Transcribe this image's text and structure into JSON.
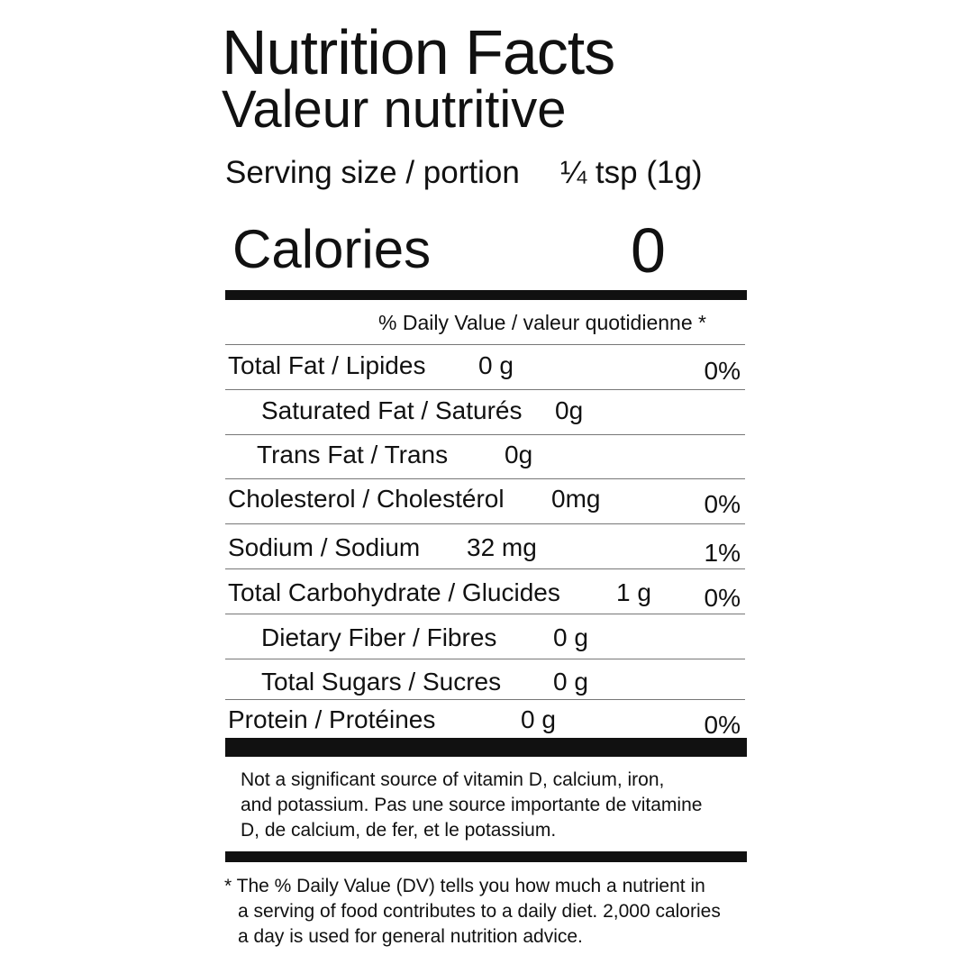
{
  "title": "Nutrition Facts",
  "title_fr": "Valeur nutritive",
  "serving_label": "Serving size / portion",
  "serving_value": "¼ tsp (1g)",
  "calories_label": "Calories",
  "calories_value": "0",
  "dv_header": "% Daily Value / valeur quotidienne *",
  "rows": [
    {
      "label": "Total Fat / Lipides",
      "amount": "0 g",
      "dv": "0%"
    },
    {
      "label": "Saturated Fat / Saturés",
      "amount": "0g",
      "dv": ""
    },
    {
      "label": "Trans Fat / Trans",
      "amount": "0g",
      "dv": ""
    },
    {
      "label": "Cholesterol / Cholestérol",
      "amount": "0mg",
      "dv": "0%"
    },
    {
      "label": "Sodium / Sodium",
      "amount": "32 mg",
      "dv": "1%"
    },
    {
      "label": "Total Carbohydrate / Glucides",
      "amount": "1 g",
      "dv": "0%"
    },
    {
      "label": "Dietary Fiber  / Fibres",
      "amount": "0 g",
      "dv": ""
    },
    {
      "label": "Total Sugars / Sucres",
      "amount": "0 g",
      "dv": ""
    },
    {
      "label": "Protein / Protéines",
      "amount": "0 g",
      "dv": "0%"
    }
  ],
  "note": [
    "Not a significant source of vitamin D, calcium, iron,",
    "and potassium. Pas une source importante de vitamine",
    "D, de calcium, de fer, et le potassium."
  ],
  "footnote": [
    "* The % Daily Value (DV) tells you how much a nutrient in",
    "a serving of food contributes to a daily diet. 2,000 calories",
    "a day is used for general nutrition advice."
  ]
}
